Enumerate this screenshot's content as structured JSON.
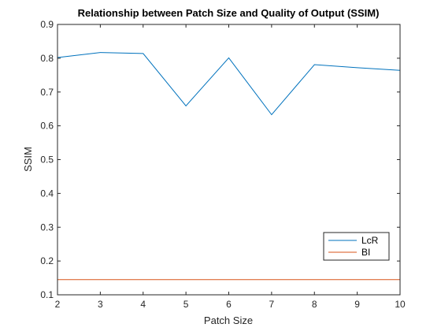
{
  "chart_data": {
    "type": "line",
    "title": "Relationship between Patch Size and Quality of Output (SSIM)",
    "xlabel": "Patch Size",
    "ylabel": "SSIM",
    "xlim": [
      2,
      10
    ],
    "ylim": [
      0.1,
      0.9
    ],
    "xticks": [
      2,
      3,
      4,
      5,
      6,
      7,
      8,
      9,
      10
    ],
    "yticks": [
      0.1,
      0.2,
      0.3,
      0.4,
      0.5,
      0.6,
      0.7,
      0.8,
      0.9
    ],
    "grid": false,
    "legend_position": "bottom-right",
    "series": [
      {
        "name": "LcR",
        "color": "#0072BD",
        "x": [
          2,
          3,
          4,
          5,
          6,
          7,
          8,
          9,
          10
        ],
        "values": [
          0.802,
          0.817,
          0.814,
          0.659,
          0.801,
          0.633,
          0.781,
          0.772,
          0.764
        ]
      },
      {
        "name": "BI",
        "color": "#D95319",
        "x": [
          2,
          3,
          4,
          5,
          6,
          7,
          8,
          9,
          10
        ],
        "values": [
          0.145,
          0.145,
          0.145,
          0.145,
          0.145,
          0.145,
          0.145,
          0.145,
          0.145
        ]
      }
    ]
  }
}
